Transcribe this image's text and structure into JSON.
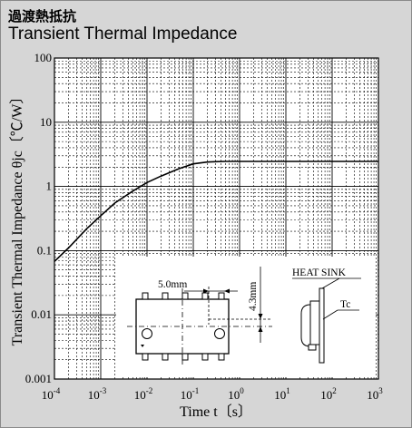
{
  "header": {
    "title_jp": "過渡熱抵抗",
    "title_en": "Transient Thermal Impedance"
  },
  "chart_data": {
    "type": "line",
    "title": "Transient Thermal Impedance",
    "xlabel": "Time  t〔s〕",
    "ylabel": "Transient Thermal Impedance  θjc〔℃/W〕",
    "x_scale": "log",
    "y_scale": "log",
    "xlim": [
      0.0001,
      1000
    ],
    "ylim": [
      0.001,
      100
    ],
    "x_ticks": [
      {
        "value": 0.0001,
        "base": "10",
        "exp": "-4"
      },
      {
        "value": 0.001,
        "base": "10",
        "exp": "-3"
      },
      {
        "value": 0.01,
        "base": "10",
        "exp": "-2"
      },
      {
        "value": 0.1,
        "base": "10",
        "exp": "-1"
      },
      {
        "value": 1,
        "base": "10",
        "exp": "0"
      },
      {
        "value": 10,
        "base": "10",
        "exp": "1"
      },
      {
        "value": 100,
        "base": "10",
        "exp": "2"
      },
      {
        "value": 1000,
        "base": "10",
        "exp": "3"
      }
    ],
    "y_ticks": [
      {
        "value": 100,
        "label": "100"
      },
      {
        "value": 10,
        "label": "10"
      },
      {
        "value": 1,
        "label": "1"
      },
      {
        "value": 0.1,
        "label": "0.1"
      },
      {
        "value": 0.01,
        "label": "0.01"
      },
      {
        "value": 0.001,
        "label": "0.001"
      }
    ],
    "grid": true,
    "series": [
      {
        "x": [
          0.0001,
          0.0002,
          0.0005,
          0.001,
          0.002,
          0.005,
          0.01,
          0.02,
          0.05,
          0.1,
          0.2,
          0.3,
          0.5,
          1,
          10,
          100,
          1000
        ],
        "y": [
          0.068,
          0.11,
          0.22,
          0.35,
          0.55,
          0.85,
          1.15,
          1.45,
          1.9,
          2.25,
          2.4,
          2.43,
          2.45,
          2.45,
          2.45,
          2.45,
          2.45
        ]
      }
    ],
    "inset": {
      "dim_width": "5.0mm",
      "dim_height": "4.3mm",
      "heat_sink_label": "HEAT SINK",
      "tc_label": "Tc"
    }
  }
}
